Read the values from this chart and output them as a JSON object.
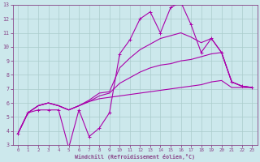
{
  "xlabel": "Windchill (Refroidissement éolien,°C)",
  "background_color": "#cce8ec",
  "grid_color": "#aacccc",
  "line_color": "#aa00aa",
  "border_color": "#884488",
  "xlim": [
    -0.5,
    23.5
  ],
  "ylim": [
    3,
    13
  ],
  "xticks": [
    0,
    1,
    2,
    3,
    4,
    5,
    6,
    7,
    8,
    9,
    10,
    11,
    12,
    13,
    14,
    15,
    16,
    17,
    18,
    19,
    20,
    21,
    22,
    23
  ],
  "yticks": [
    3,
    4,
    5,
    6,
    7,
    8,
    9,
    10,
    11,
    12,
    13
  ],
  "series": [
    {
      "x": [
        0,
        1,
        2,
        3,
        4,
        5,
        6,
        7,
        8,
        9,
        10,
        11,
        12,
        13,
        14,
        15,
        16,
        17,
        18,
        19,
        20,
        21,
        22,
        23
      ],
      "y": [
        3.8,
        5.3,
        5.5,
        5.5,
        5.5,
        2.8,
        5.5,
        3.6,
        4.2,
        5.3,
        9.5,
        10.5,
        12.0,
        12.5,
        11.0,
        12.8,
        13.2,
        11.6,
        9.6,
        10.6,
        9.6,
        7.5,
        7.2,
        7.1
      ],
      "marker": true
    },
    {
      "x": [
        0,
        1,
        2,
        3,
        4,
        5,
        6,
        7,
        8,
        9,
        10,
        11,
        12,
        13,
        14,
        15,
        16,
        17,
        18,
        19,
        20,
        21,
        22,
        23
      ],
      "y": [
        3.8,
        5.3,
        5.8,
        6.0,
        5.8,
        5.5,
        5.8,
        6.1,
        6.3,
        6.4,
        6.5,
        6.6,
        6.7,
        6.8,
        6.9,
        7.0,
        7.1,
        7.2,
        7.3,
        7.5,
        7.6,
        7.1,
        7.1,
        7.1
      ],
      "marker": false
    },
    {
      "x": [
        0,
        1,
        2,
        3,
        4,
        5,
        6,
        7,
        8,
        9,
        10,
        11,
        12,
        13,
        14,
        15,
        16,
        17,
        18,
        19,
        20,
        21,
        22,
        23
      ],
      "y": [
        3.8,
        5.3,
        5.8,
        6.0,
        5.8,
        5.5,
        5.8,
        6.1,
        6.5,
        6.7,
        7.4,
        7.8,
        8.2,
        8.5,
        8.7,
        8.8,
        9.0,
        9.1,
        9.3,
        9.5,
        9.6,
        7.5,
        7.2,
        7.1
      ],
      "marker": false
    },
    {
      "x": [
        0,
        1,
        2,
        3,
        4,
        5,
        6,
        7,
        8,
        9,
        10,
        11,
        12,
        13,
        14,
        15,
        16,
        17,
        18,
        19,
        20,
        21,
        22,
        23
      ],
      "y": [
        3.8,
        5.3,
        5.8,
        6.0,
        5.8,
        5.5,
        5.8,
        6.2,
        6.7,
        6.8,
        8.5,
        9.2,
        9.8,
        10.2,
        10.6,
        10.8,
        11.0,
        10.7,
        10.3,
        10.6,
        9.6,
        7.5,
        7.2,
        7.1
      ],
      "marker": false
    }
  ]
}
